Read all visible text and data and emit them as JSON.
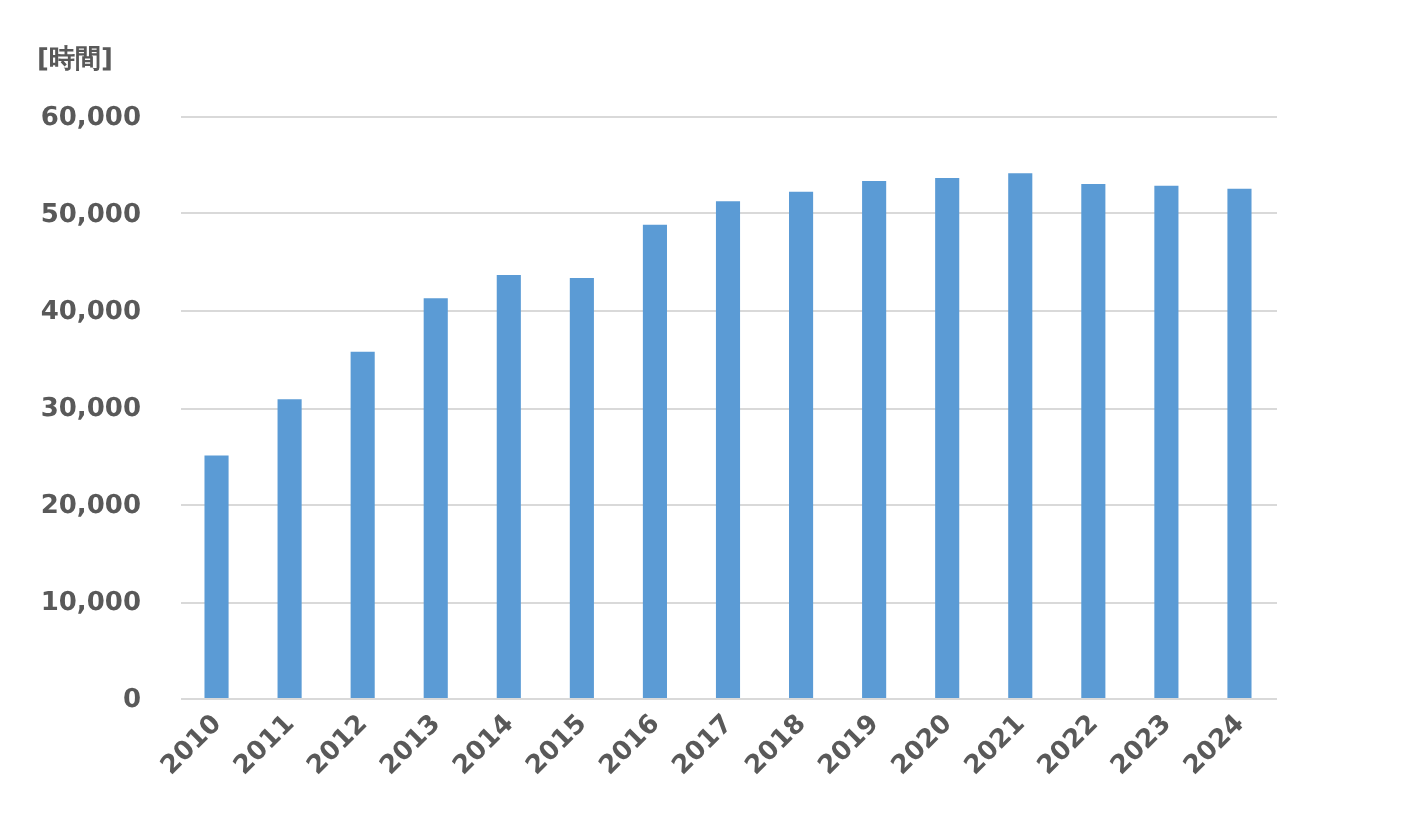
{
  "chart_data": {
    "type": "bar",
    "ylabel": "[時間]",
    "categories": [
      "2010",
      "2011",
      "2012",
      "2013",
      "2014",
      "2015",
      "2016",
      "2017",
      "2018",
      "2019",
      "2020",
      "2021",
      "2022",
      "2023",
      "2024"
    ],
    "values": [
      25000,
      30800,
      35700,
      41200,
      43600,
      43300,
      48800,
      51200,
      52200,
      53300,
      53600,
      54100,
      53000,
      52800,
      52500
    ],
    "color": "#5b9bd5",
    "ylim": [
      0,
      60000
    ],
    "yticks": [
      0,
      {
        "value": 10000,
        "label": "10,000"
      },
      {
        "value": 20000,
        "label": "20,000"
      },
      {
        "value": 30000,
        "label": "30,000"
      },
      {
        "value": 40000,
        "label": "40,000"
      },
      {
        "value": 50000,
        "label": "50,000"
      },
      {
        "value": 60000,
        "label": "60,000"
      }
    ],
    "grid": "y"
  }
}
